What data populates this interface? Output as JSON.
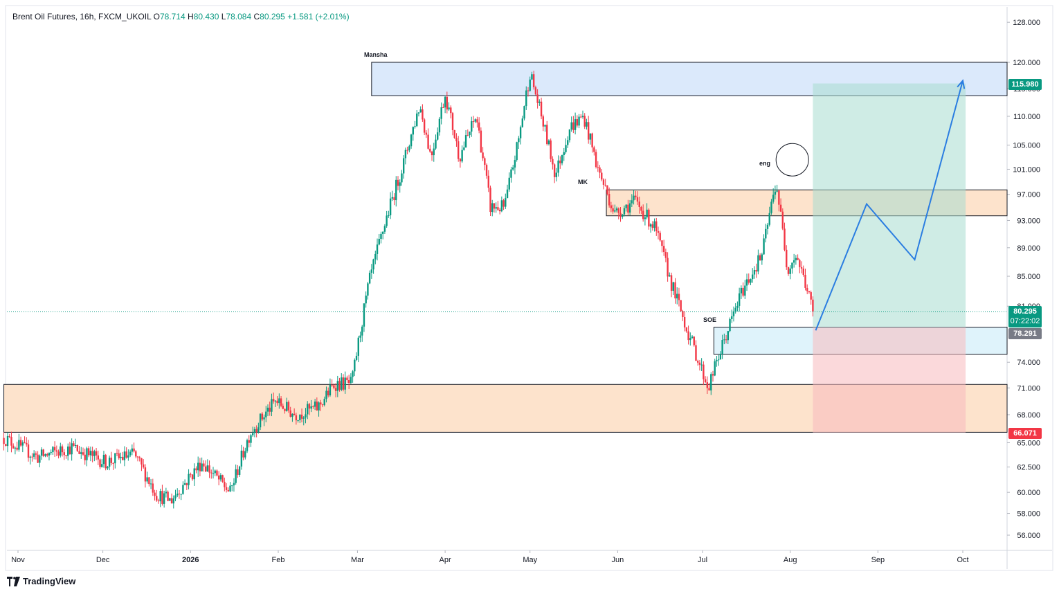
{
  "header": {
    "symbol": "Brent Oil Futures, 16h, FXCM_UKOIL",
    "open_label": "O",
    "open": "78.714",
    "high_label": "H",
    "high": "80.430",
    "low_label": "L",
    "low": "78.084",
    "close_label": "C",
    "close": "80.295",
    "change": "+1.581 (+2.01%)"
  },
  "brand": {
    "name": "TradingView"
  },
  "zones": {
    "mansha": "Mansha",
    "mk": "MK",
    "soe": "SOE",
    "eng": "eng"
  },
  "price_tags": {
    "target": "115.980",
    "current_price": "80.295",
    "countdown": "07:22:02",
    "entry": "78.291",
    "stop": "66.071"
  },
  "colors": {
    "up": "#089981",
    "down": "#f23645",
    "blue_zone": "#dbe9fb",
    "orange_zone": "#fde3cc",
    "light_blue_zone": "#dff3fb",
    "profit": "#a7dccf",
    "loss": "#f7b9bd",
    "projection": "#2a7de1"
  },
  "chart_data": {
    "type": "candlestick",
    "title": "Brent Oil Futures, 16h, FXCM_UKOIL",
    "y_axis": {
      "ticks": [
        "128.000",
        "120.000",
        "115.000",
        "110.000",
        "105.000",
        "101.000",
        "97.000",
        "93.000",
        "89.000",
        "85.000",
        "81.000",
        "74.000",
        "71.000",
        "68.000",
        "65.000",
        "62.500",
        "60.000",
        "58.000",
        "56.000"
      ],
      "scale": "log",
      "ylim": [
        54.8,
        130
      ]
    },
    "x_axis": {
      "ticks": [
        "Nov",
        "Dec",
        "2026",
        "Feb",
        "Mar",
        "Apr",
        "May",
        "Jun",
        "Jul",
        "Aug",
        "Sep",
        "Oct"
      ],
      "range": [
        "2025-10-27",
        "2026-10-18"
      ]
    },
    "price_path": [
      {
        "date": "2025-10-27",
        "price": 65.5
      },
      {
        "date": "2025-11-08",
        "price": 63.5
      },
      {
        "date": "2025-11-20",
        "price": 64.5
      },
      {
        "date": "2025-12-02",
        "price": 63.0
      },
      {
        "date": "2025-12-12",
        "price": 63.8
      },
      {
        "date": "2025-12-20",
        "price": 59.8
      },
      {
        "date": "2025-12-25",
        "price": 59.2
      },
      {
        "date": "2026-01-05",
        "price": 63.0
      },
      {
        "date": "2026-01-15",
        "price": 60.0
      },
      {
        "date": "2026-01-22",
        "price": 66.0
      },
      {
        "date": "2026-01-31",
        "price": 69.5
      },
      {
        "date": "2026-02-07",
        "price": 68.0
      },
      {
        "date": "2026-02-15",
        "price": 68.8
      },
      {
        "date": "2026-02-21",
        "price": 71.5
      },
      {
        "date": "2026-02-27",
        "price": 71.5
      },
      {
        "date": "2026-03-05",
        "price": 84.0
      },
      {
        "date": "2026-03-11",
        "price": 93.0
      },
      {
        "date": "2026-03-17",
        "price": 101.5
      },
      {
        "date": "2026-03-23",
        "price": 112.0
      },
      {
        "date": "2026-03-27",
        "price": 103.0
      },
      {
        "date": "2026-04-01",
        "price": 114.0
      },
      {
        "date": "2026-04-06",
        "price": 103.0
      },
      {
        "date": "2026-04-12",
        "price": 110.0
      },
      {
        "date": "2026-04-17",
        "price": 95.0
      },
      {
        "date": "2026-04-22",
        "price": 95.0
      },
      {
        "date": "2026-04-27",
        "price": 106.0
      },
      {
        "date": "2026-05-01",
        "price": 118.0
      },
      {
        "date": "2026-05-05",
        "price": 110.0
      },
      {
        "date": "2026-05-10",
        "price": 100.0
      },
      {
        "date": "2026-05-15",
        "price": 108.0
      },
      {
        "date": "2026-05-20",
        "price": 110.0
      },
      {
        "date": "2026-05-25",
        "price": 101.0
      },
      {
        "date": "2026-05-31",
        "price": 94.0
      },
      {
        "date": "2026-06-07",
        "price": 96.0
      },
      {
        "date": "2026-06-14",
        "price": 92.0
      },
      {
        "date": "2026-06-20",
        "price": 84.0
      },
      {
        "date": "2026-06-26",
        "price": 77.5
      },
      {
        "date": "2026-07-03",
        "price": 71.0
      },
      {
        "date": "2026-07-10",
        "price": 78.0
      },
      {
        "date": "2026-07-15",
        "price": 83.0
      },
      {
        "date": "2026-07-22",
        "price": 88.0
      },
      {
        "date": "2026-07-27",
        "price": 99.0
      },
      {
        "date": "2026-07-31",
        "price": 86.0
      },
      {
        "date": "2026-08-03",
        "price": 88.0
      },
      {
        "date": "2026-08-06",
        "price": 84.5
      },
      {
        "date": "2026-08-09",
        "price": 80.295
      }
    ],
    "zones": [
      {
        "label": "Mansha",
        "from": "2026-03-06",
        "to": "2026-10-18",
        "top": 120.0,
        "bottom": 113.7
      },
      {
        "label": "MK",
        "from": "2026-05-28",
        "to": "2026-10-18",
        "top": 97.7,
        "bottom": 93.7
      },
      {
        "label": "SOE",
        "from": "2026-07-05",
        "to": "2026-10-18",
        "top": 78.3,
        "bottom": 74.95
      },
      {
        "label": "",
        "from": "2025-10-27",
        "to": "2026-10-18",
        "top": 71.4,
        "bottom": 66.1
      }
    ],
    "position": {
      "from": "2026-08-09",
      "to": "2026-10-02",
      "entry": 78.291,
      "target": 115.98,
      "stop": 66.071
    },
    "current_price": 80.295,
    "projection": [
      {
        "date": "2026-08-10",
        "price": 77.9
      },
      {
        "date": "2026-08-28",
        "price": 95.5
      },
      {
        "date": "2026-09-14",
        "price": 87.3
      },
      {
        "date": "2026-10-01",
        "price": 116.5
      }
    ],
    "annotation": {
      "label": "eng",
      "date": "2026-08-01",
      "price": 102.5
    }
  }
}
